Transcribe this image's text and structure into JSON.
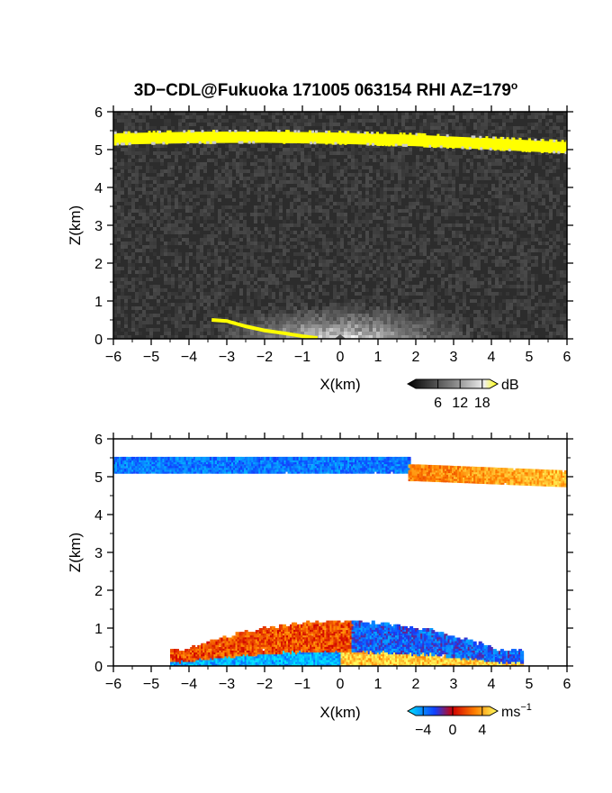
{
  "title": "3D−CDL@Fukuoka 171005 063154 RHI AZ=179",
  "title_superscript": "o",
  "chart_data": [
    {
      "type": "heatmap",
      "name": "reflectivity",
      "xlabel": "X(km)",
      "ylabel": "Z(km)",
      "xlim": [
        -6,
        6
      ],
      "ylim": [
        0,
        6
      ],
      "xticks": [
        "−6",
        "−5",
        "−4",
        "−3",
        "−2",
        "−1",
        "0",
        "1",
        "2",
        "3",
        "4",
        "5",
        "6"
      ],
      "yticks": [
        "0",
        "1",
        "2",
        "3",
        "4",
        "5",
        "6"
      ],
      "grid": false,
      "colorbar": {
        "label": "dB",
        "tick_labels": [
          "6",
          "12",
          "18"
        ],
        "range": [
          0,
          20
        ]
      },
      "features": [
        {
          "kind": "layer",
          "x": [
            -6,
            -4,
            -2,
            0,
            2,
            4,
            6
          ],
          "z": [
            5.28,
            5.32,
            5.33,
            5.3,
            5.24,
            5.15,
            5.05
          ],
          "thickness": 0.3,
          "value": 18
        },
        {
          "kind": "ground_clutter_fan",
          "x_center": 0,
          "half_width": 4.5,
          "height": 1.2,
          "peak": 12
        },
        {
          "kind": "terrain_echo",
          "x": [
            -3.4,
            -3.0,
            -2.5,
            -2.0,
            -1.5,
            -1.0,
            -0.6
          ],
          "z": [
            0.5,
            0.47,
            0.33,
            0.22,
            0.15,
            0.07,
            0.02
          ],
          "value": 18
        }
      ]
    },
    {
      "type": "heatmap",
      "name": "doppler_velocity",
      "xlabel": "X(km)",
      "ylabel": "Z(km)",
      "xlim": [
        -6,
        6
      ],
      "ylim": [
        0,
        6
      ],
      "xticks": [
        "−6",
        "−5",
        "−4",
        "−3",
        "−2",
        "−1",
        "0",
        "1",
        "2",
        "3",
        "4",
        "5",
        "6"
      ],
      "yticks": [
        "0",
        "1",
        "2",
        "3",
        "4",
        "5",
        "6"
      ],
      "grid": false,
      "colorbar": {
        "label": "ms",
        "label_superscript": "−1",
        "tick_labels": [
          "−4",
          "0",
          "4"
        ],
        "range": [
          -5,
          5
        ]
      },
      "features": [
        {
          "kind": "layer",
          "x_range": [
            -6,
            1.8
          ],
          "z_center": 5.35,
          "thickness": 0.35,
          "velocity": -3
        },
        {
          "kind": "layer",
          "x_range": [
            1.8,
            6
          ],
          "z_center": 5.15,
          "thickness": 0.35,
          "velocity": 2.5
        },
        {
          "kind": "boundary_layer",
          "x_range": [
            -4.5,
            4.8
          ],
          "z_top": 1.2,
          "velocity_near_ground_left": -4,
          "velocity_near_ground_right": 4,
          "velocity_aloft_left": 1.5,
          "velocity_aloft_right": -2.5
        }
      ]
    }
  ]
}
